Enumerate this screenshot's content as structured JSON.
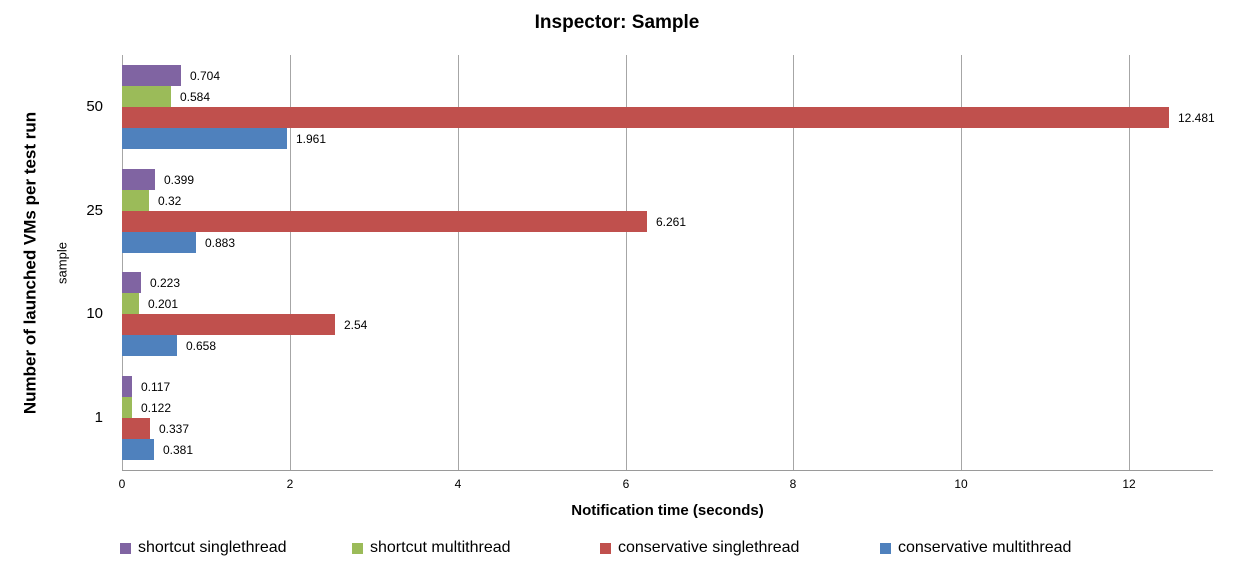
{
  "chart_data": {
    "type": "bar",
    "orientation": "horizontal",
    "title": "Inspector: Sample",
    "xlabel": "Notification time (seconds)",
    "ylabel": "Number of launched VMs per test run",
    "ylabel_secondary": "sample",
    "categories": [
      "50",
      "25",
      "10",
      "1"
    ],
    "series": [
      {
        "name": "shortcut singlethread",
        "color": "#8064A2",
        "values": [
          0.704,
          0.399,
          0.223,
          0.117
        ]
      },
      {
        "name": "shortcut multithread",
        "color": "#9BBB59",
        "values": [
          0.584,
          0.32,
          0.201,
          0.122
        ]
      },
      {
        "name": "conservative singlethread",
        "color": "#C0504D",
        "values": [
          12.481,
          6.261,
          2.54,
          0.337
        ]
      },
      {
        "name": "conservative multithread",
        "color": "#4F81BD",
        "values": [
          1.961,
          0.883,
          0.658,
          0.381
        ]
      }
    ],
    "xlim": [
      0,
      13
    ],
    "xticks": [
      0,
      2,
      4,
      6,
      8,
      10,
      12
    ],
    "grid": true,
    "legend_position": "bottom",
    "colors": {
      "gridline": "#a6a6a6",
      "axis_line": "#9a9a9a",
      "text": "#000000",
      "background": "#ffffff"
    }
  }
}
